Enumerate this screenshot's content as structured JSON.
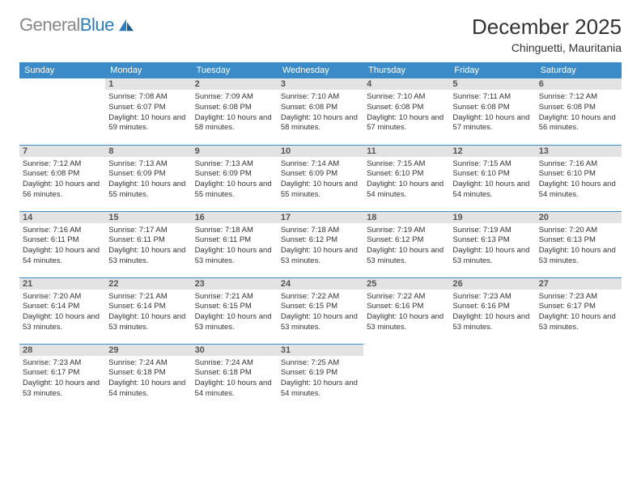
{
  "logo": {
    "text_gray": "General",
    "text_blue": "Blue"
  },
  "title": "December 2025",
  "location": "Chinguetti, Mauritania",
  "colors": {
    "header_bg": "#3b8bc9",
    "header_text": "#ffffff",
    "daynum_bg": "#e3e3e3",
    "border": "#3b8bc9",
    "logo_blue": "#2b7bbf"
  },
  "day_headers": [
    "Sunday",
    "Monday",
    "Tuesday",
    "Wednesday",
    "Thursday",
    "Friday",
    "Saturday"
  ],
  "weeks": [
    [
      null,
      {
        "num": "1",
        "sunrise": "7:08 AM",
        "sunset": "6:07 PM",
        "daylight": "10 hours and 59 minutes."
      },
      {
        "num": "2",
        "sunrise": "7:09 AM",
        "sunset": "6:08 PM",
        "daylight": "10 hours and 58 minutes."
      },
      {
        "num": "3",
        "sunrise": "7:10 AM",
        "sunset": "6:08 PM",
        "daylight": "10 hours and 58 minutes."
      },
      {
        "num": "4",
        "sunrise": "7:10 AM",
        "sunset": "6:08 PM",
        "daylight": "10 hours and 57 minutes."
      },
      {
        "num": "5",
        "sunrise": "7:11 AM",
        "sunset": "6:08 PM",
        "daylight": "10 hours and 57 minutes."
      },
      {
        "num": "6",
        "sunrise": "7:12 AM",
        "sunset": "6:08 PM",
        "daylight": "10 hours and 56 minutes."
      }
    ],
    [
      {
        "num": "7",
        "sunrise": "7:12 AM",
        "sunset": "6:08 PM",
        "daylight": "10 hours and 56 minutes."
      },
      {
        "num": "8",
        "sunrise": "7:13 AM",
        "sunset": "6:09 PM",
        "daylight": "10 hours and 55 minutes."
      },
      {
        "num": "9",
        "sunrise": "7:13 AM",
        "sunset": "6:09 PM",
        "daylight": "10 hours and 55 minutes."
      },
      {
        "num": "10",
        "sunrise": "7:14 AM",
        "sunset": "6:09 PM",
        "daylight": "10 hours and 55 minutes."
      },
      {
        "num": "11",
        "sunrise": "7:15 AM",
        "sunset": "6:10 PM",
        "daylight": "10 hours and 54 minutes."
      },
      {
        "num": "12",
        "sunrise": "7:15 AM",
        "sunset": "6:10 PM",
        "daylight": "10 hours and 54 minutes."
      },
      {
        "num": "13",
        "sunrise": "7:16 AM",
        "sunset": "6:10 PM",
        "daylight": "10 hours and 54 minutes."
      }
    ],
    [
      {
        "num": "14",
        "sunrise": "7:16 AM",
        "sunset": "6:11 PM",
        "daylight": "10 hours and 54 minutes."
      },
      {
        "num": "15",
        "sunrise": "7:17 AM",
        "sunset": "6:11 PM",
        "daylight": "10 hours and 53 minutes."
      },
      {
        "num": "16",
        "sunrise": "7:18 AM",
        "sunset": "6:11 PM",
        "daylight": "10 hours and 53 minutes."
      },
      {
        "num": "17",
        "sunrise": "7:18 AM",
        "sunset": "6:12 PM",
        "daylight": "10 hours and 53 minutes."
      },
      {
        "num": "18",
        "sunrise": "7:19 AM",
        "sunset": "6:12 PM",
        "daylight": "10 hours and 53 minutes."
      },
      {
        "num": "19",
        "sunrise": "7:19 AM",
        "sunset": "6:13 PM",
        "daylight": "10 hours and 53 minutes."
      },
      {
        "num": "20",
        "sunrise": "7:20 AM",
        "sunset": "6:13 PM",
        "daylight": "10 hours and 53 minutes."
      }
    ],
    [
      {
        "num": "21",
        "sunrise": "7:20 AM",
        "sunset": "6:14 PM",
        "daylight": "10 hours and 53 minutes."
      },
      {
        "num": "22",
        "sunrise": "7:21 AM",
        "sunset": "6:14 PM",
        "daylight": "10 hours and 53 minutes."
      },
      {
        "num": "23",
        "sunrise": "7:21 AM",
        "sunset": "6:15 PM",
        "daylight": "10 hours and 53 minutes."
      },
      {
        "num": "24",
        "sunrise": "7:22 AM",
        "sunset": "6:15 PM",
        "daylight": "10 hours and 53 minutes."
      },
      {
        "num": "25",
        "sunrise": "7:22 AM",
        "sunset": "6:16 PM",
        "daylight": "10 hours and 53 minutes."
      },
      {
        "num": "26",
        "sunrise": "7:23 AM",
        "sunset": "6:16 PM",
        "daylight": "10 hours and 53 minutes."
      },
      {
        "num": "27",
        "sunrise": "7:23 AM",
        "sunset": "6:17 PM",
        "daylight": "10 hours and 53 minutes."
      }
    ],
    [
      {
        "num": "28",
        "sunrise": "7:23 AM",
        "sunset": "6:17 PM",
        "daylight": "10 hours and 53 minutes."
      },
      {
        "num": "29",
        "sunrise": "7:24 AM",
        "sunset": "6:18 PM",
        "daylight": "10 hours and 54 minutes."
      },
      {
        "num": "30",
        "sunrise": "7:24 AM",
        "sunset": "6:18 PM",
        "daylight": "10 hours and 54 minutes."
      },
      {
        "num": "31",
        "sunrise": "7:25 AM",
        "sunset": "6:19 PM",
        "daylight": "10 hours and 54 minutes."
      },
      null,
      null,
      null
    ]
  ],
  "labels": {
    "sunrise": "Sunrise:",
    "sunset": "Sunset:",
    "daylight": "Daylight:"
  }
}
